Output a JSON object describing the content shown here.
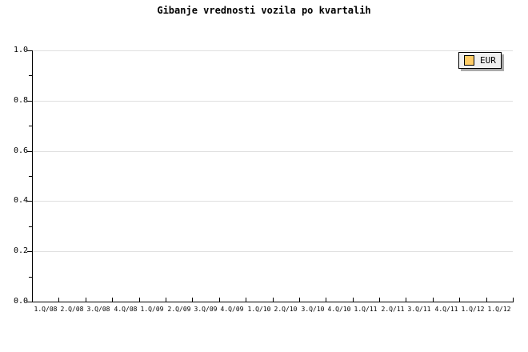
{
  "title": "Gibanje vrednosti vozila po kvartalih",
  "legend": {
    "position": "top-right",
    "items": [
      {
        "label": "EUR",
        "swatch_color": "#ffcc66"
      }
    ]
  },
  "axes": {
    "y_tick_labels": [
      "0.0",
      "0.2",
      "0.4",
      "0.6",
      "0.8",
      "1.0"
    ],
    "x_tick_labels": [
      "1.Q/08",
      "2.Q/08",
      "3.Q/08",
      "4.Q/08",
      "1.Q/09",
      "2.Q/09",
      "3.Q/09",
      "4.Q/09",
      "1.Q/10",
      "2.Q/10",
      "3.Q/10",
      "4.Q/10",
      "1.Q/11",
      "2.Q/11",
      "3.Q/11",
      "4.Q/11",
      "1.Q/12",
      "1.Q/12"
    ]
  },
  "colors": {
    "background": "#ffffff",
    "axis": "#000000",
    "gridline": "#e0e0e0",
    "text": "#000000",
    "legend_background": "#f0f0f0",
    "legend_border": "#000000",
    "legend_shadow": "#aaaaaa",
    "series_eur": "#ffcc66"
  },
  "chart_data": {
    "type": "line",
    "title": "Gibanje vrednosti vozila po kvartalih",
    "categories": [
      "1.Q/08",
      "2.Q/08",
      "3.Q/08",
      "4.Q/08",
      "1.Q/09",
      "2.Q/09",
      "3.Q/09",
      "4.Q/09",
      "1.Q/10",
      "2.Q/10",
      "3.Q/10",
      "4.Q/10",
      "1.Q/11",
      "2.Q/11",
      "3.Q/11",
      "4.Q/11",
      "1.Q/12",
      "1.Q/12"
    ],
    "series": [
      {
        "name": "EUR",
        "color": "#ffcc66",
        "values": []
      }
    ],
    "xlabel": "",
    "ylabel": "",
    "ylim": [
      0.0,
      1.0
    ],
    "y_ticks": [
      0.0,
      0.2,
      0.4,
      0.6,
      0.8,
      1.0
    ],
    "y_minor_ticks": [
      0.1,
      0.3,
      0.5,
      0.7,
      0.9
    ],
    "grid": "horizontal-major",
    "legend_position": "top-right",
    "plot_state": "empty - no data points rendered"
  }
}
